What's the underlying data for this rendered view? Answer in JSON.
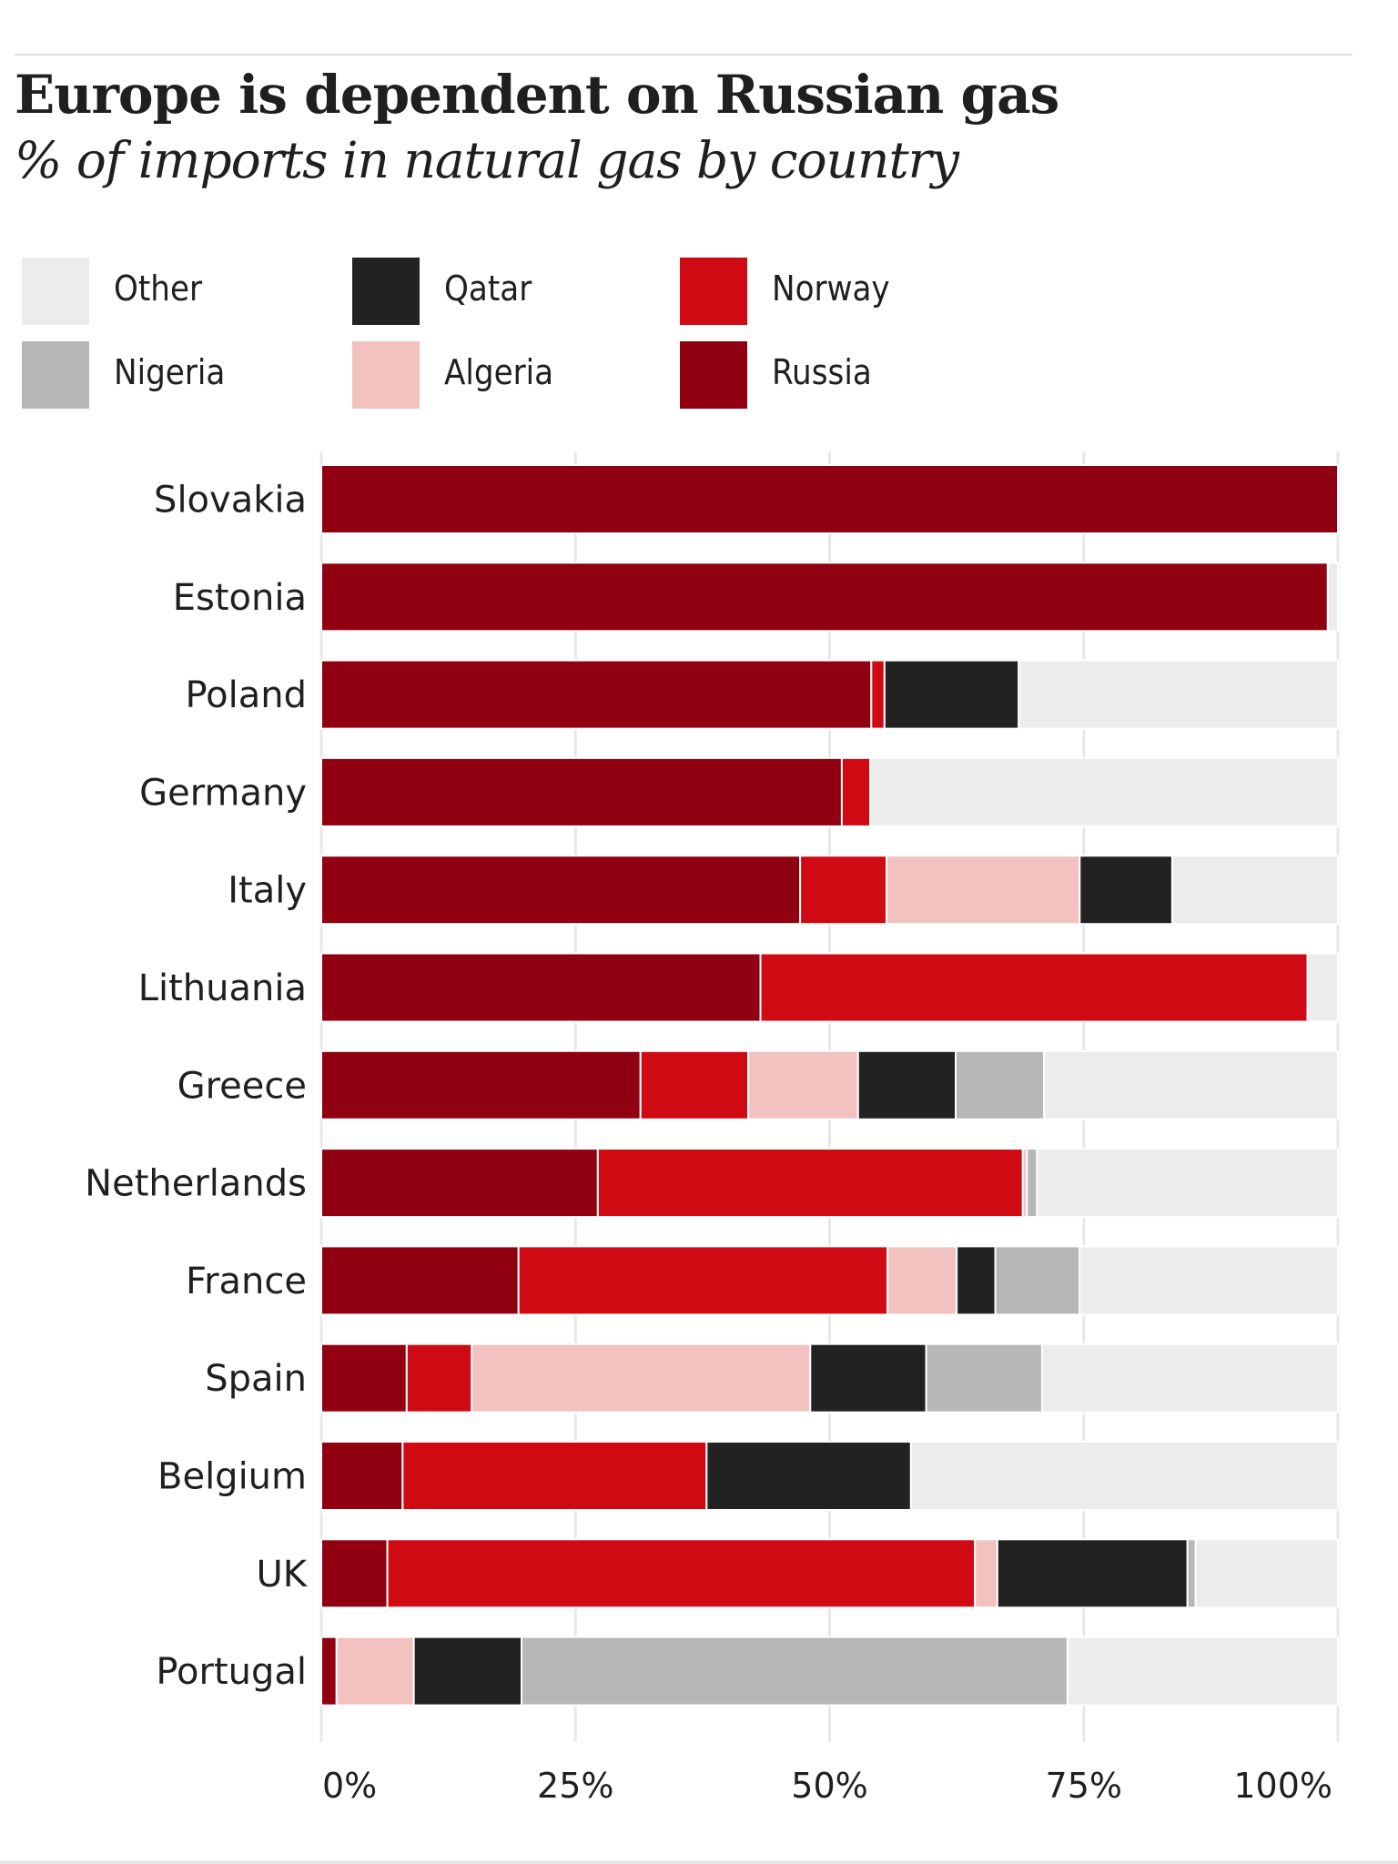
{
  "colors": {
    "Other": "#ececec",
    "Nigeria": "#b7b7b7",
    "Qatar": "#222222",
    "Algeria": "#f2c1c0",
    "Norway": "#cf0a12",
    "Russia": "#910010",
    "gridline": "#e8e8e8"
  },
  "chart_data": {
    "type": "bar",
    "orientation": "horizontal",
    "stacked": true,
    "title": "Europe is dependent on Russian gas",
    "subtitle": "% of imports in natural gas by country",
    "xlabel": "",
    "ylabel": "",
    "xlim": [
      0,
      100
    ],
    "x_ticks": [
      0,
      25,
      50,
      75,
      100
    ],
    "x_tick_labels": [
      "0%",
      "25%",
      "50%",
      "75%",
      "100%"
    ],
    "grid": true,
    "legend_placement": "top-left",
    "legend": [
      "Other",
      "Qatar",
      "Norway",
      "Nigeria",
      "Algeria",
      "Russia"
    ],
    "categories": [
      "Slovakia",
      "Estonia",
      "Poland",
      "Germany",
      "Italy",
      "Lithuania",
      "Greece",
      "Netherlands",
      "France",
      "Spain",
      "Belgium",
      "UK",
      "Portugal"
    ],
    "series": [
      {
        "name": "Russia",
        "values": [
          100,
          99,
          54.1,
          51.2,
          47.1,
          43.2,
          31.4,
          27.2,
          19.4,
          8.4,
          8.0,
          6.5,
          1.5
        ]
      },
      {
        "name": "Norway",
        "values": [
          0,
          0,
          1.3,
          2.8,
          8.5,
          53.8,
          10.6,
          41.8,
          36.3,
          6.4,
          29.9,
          57.8,
          0
        ]
      },
      {
        "name": "Algeria",
        "values": [
          0,
          0,
          0,
          0,
          19.0,
          0,
          10.8,
          0.4,
          6.8,
          33.3,
          0,
          2.2,
          7.6
        ]
      },
      {
        "name": "Qatar",
        "values": [
          0,
          0,
          13.2,
          0,
          9.1,
          0,
          9.6,
          0,
          3.8,
          11.4,
          20.1,
          18.7,
          10.6
        ]
      },
      {
        "name": "Nigeria",
        "values": [
          0,
          0,
          0,
          0,
          0,
          0,
          8.7,
          1.0,
          8.3,
          11.4,
          0,
          0.8,
          53.7
        ]
      },
      {
        "name": "Other",
        "values": [
          0,
          1.0,
          31.4,
          46.0,
          16.3,
          3.0,
          28.9,
          29.6,
          25.4,
          29.1,
          42.0,
          14.0,
          26.6
        ]
      }
    ]
  }
}
